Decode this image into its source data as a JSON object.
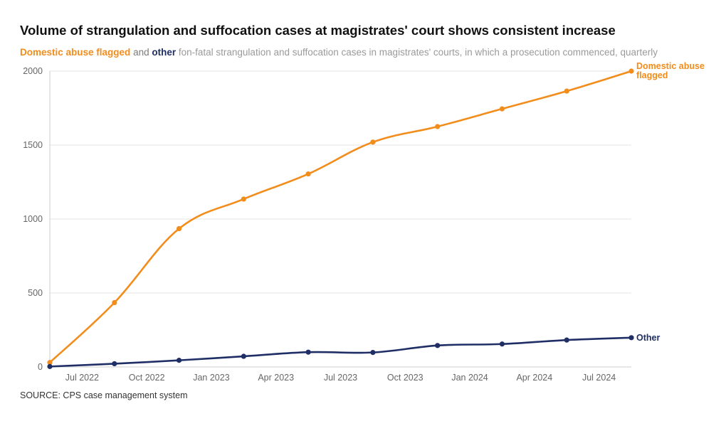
{
  "title": "Volume of strangulation and suffocation cases at magistrates' court shows consistent increase",
  "subtitle": {
    "series_a": "Domestic abuse flagged",
    "and_text": "and",
    "series_b": "other",
    "rest": "fon-fatal strangulation and suffocation cases in magistrates' courts, in which a prosecution commenced, quarterly"
  },
  "source": "SOURCE: CPS case management system",
  "colors": {
    "domestic": "#f28c1b",
    "other": "#1f2f66",
    "grid": "#e6e6e6",
    "axis": "#cccccc"
  },
  "chart_data": {
    "type": "line",
    "title": "Volume of strangulation and suffocation cases at magistrates' court shows consistent increase",
    "xlabel": "",
    "ylabel": "",
    "ylim": [
      0,
      2000
    ],
    "yticks": [
      0,
      500,
      1000,
      1500,
      2000
    ],
    "x_tick_labels": [
      "Jul 2022",
      "Oct 2022",
      "Jan 2023",
      "Apr 2023",
      "Jul 2023",
      "Oct 2023",
      "Jan 2024",
      "Apr 2024",
      "Jul 2024"
    ],
    "x": [
      "Jun 2022",
      "Sep 2022",
      "Dec 2022",
      "Mar 2023",
      "Jun 2023",
      "Sep 2023",
      "Dec 2023",
      "Mar 2024",
      "Jun 2024",
      "Sep 2024"
    ],
    "series": [
      {
        "name": "Domestic abuse flagged",
        "label_lines": [
          "Domestic abuse",
          "flagged"
        ],
        "color": "#f28c1b",
        "values": [
          30,
          435,
          935,
          1135,
          1305,
          1520,
          1625,
          1745,
          1865,
          2000
        ]
      },
      {
        "name": "Other",
        "label_lines": [
          "Other"
        ],
        "color": "#1f2f66",
        "values": [
          3,
          22,
          45,
          72,
          100,
          98,
          145,
          155,
          182,
          198
        ]
      }
    ]
  }
}
